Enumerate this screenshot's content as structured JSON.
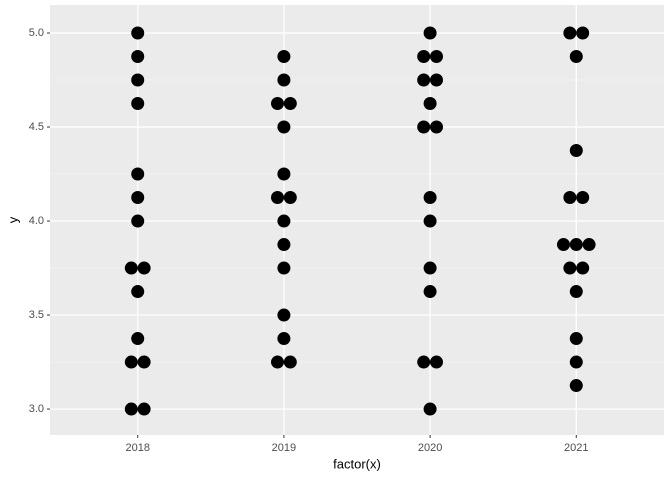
{
  "chart_data": {
    "type": "dotplot",
    "x_label": "factor(x)",
    "y_label": "y",
    "categories": [
      "2018",
      "2019",
      "2020",
      "2021"
    ],
    "values": [
      [
        5.0,
        4.875,
        4.75,
        4.625,
        4.25,
        4.125,
        4.0,
        3.75,
        3.75,
        3.625,
        3.375,
        3.25,
        3.25,
        3.0,
        3.0
      ],
      [
        4.875,
        4.75,
        4.625,
        4.625,
        4.5,
        4.25,
        4.125,
        4.125,
        4.0,
        3.875,
        3.75,
        3.5,
        3.375,
        3.25,
        3.25
      ],
      [
        5.0,
        4.875,
        4.875,
        4.75,
        4.75,
        4.625,
        4.5,
        4.5,
        4.125,
        4.0,
        3.75,
        3.625,
        3.25,
        3.25,
        3.0
      ],
      [
        5.0,
        5.0,
        4.875,
        4.375,
        4.125,
        4.125,
        3.875,
        3.875,
        3.875,
        3.75,
        3.75,
        3.625,
        3.375,
        3.25,
        3.125
      ]
    ],
    "color": "#000000",
    "ylim": [
      2.862,
      5.149
    ],
    "yticks": [
      {
        "value": 3,
        "label": "3.0"
      },
      3.5,
      {
        "value": 4,
        "label": "4.0"
      },
      4.5,
      {
        "value": 5,
        "label": "5.0"
      }
    ],
    "grid": true
  }
}
